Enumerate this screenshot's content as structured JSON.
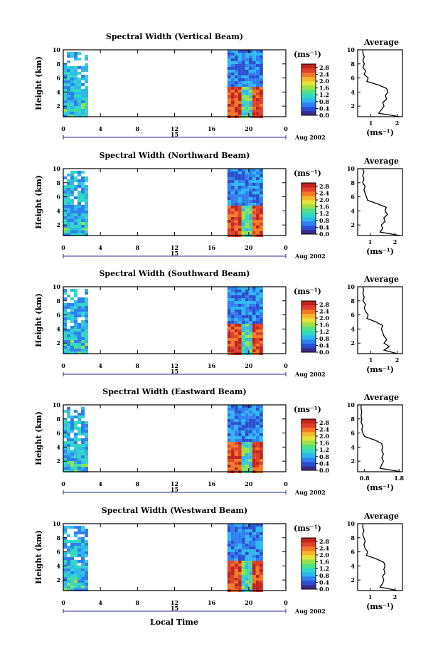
{
  "figure": {
    "x_axis_label": "Local Time",
    "date_label": "Aug 2002",
    "colorbar_unit": "(ms⁻¹)",
    "average_title": "Average",
    "average_unit": "(ms⁻¹)"
  },
  "colors": {
    "scale": [
      "#3a2a8a",
      "#2a4fd0",
      "#2f7ff0",
      "#2fb7f0",
      "#33d7c7",
      "#4fe08a",
      "#9ce04a",
      "#e6e23a",
      "#f6b62e",
      "#f07a26",
      "#e0402a",
      "#c0241c"
    ]
  },
  "chart_data": [
    {
      "type": "heatmap",
      "title": "Spectral Width (Vertical Beam)",
      "ylabel": "Height (km)",
      "xlabel": "",
      "x_ticks": [
        "0",
        "4",
        "8",
        "12",
        "16",
        "20",
        "0"
      ],
      "x_sub_label": "15",
      "xlim": [
        0,
        24
      ],
      "ylim": [
        0.5,
        10
      ],
      "y_ticks": [
        "2",
        "4",
        "6",
        "8",
        "10"
      ],
      "data_blocks": [
        {
          "x": [
            0,
            2.4
          ],
          "y": [
            0.5,
            9.7
          ]
        },
        {
          "x": [
            17.7,
            21.3
          ],
          "y": [
            0.5,
            10
          ]
        }
      ],
      "colorbar": {
        "ticks": [
          "0.0",
          "0.4",
          "0.8",
          "1.2",
          "1.6",
          "2.0",
          "2.4",
          "2.8"
        ],
        "range": [
          0,
          3
        ]
      },
      "average": {
        "title": "Average",
        "xlabel": "(ms⁻¹)",
        "x_ticks": [
          "1",
          "2"
        ],
        "xlim": [
          0.5,
          2.2
        ],
        "y_ticks": [
          "2",
          "4",
          "6",
          "8",
          "10"
        ],
        "height": [
          0.5,
          1,
          1.5,
          2,
          2.5,
          3,
          3.5,
          4,
          4.5,
          5,
          5.5,
          6,
          6.5,
          7,
          7.5,
          8,
          8.5,
          9,
          9.5,
          10
        ],
        "value": [
          2.1,
          1.3,
          1.4,
          1.5,
          1.45,
          1.6,
          1.55,
          1.65,
          1.6,
          1.3,
          0.85,
          0.9,
          0.75,
          0.8,
          0.7,
          0.75,
          0.7,
          0.75,
          0.7,
          0.7
        ]
      }
    },
    {
      "type": "heatmap",
      "title": "Spectral Width (Northward Beam)",
      "ylabel": "Height (km)",
      "xlabel": "",
      "x_ticks": [
        "0",
        "4",
        "8",
        "12",
        "16",
        "20",
        "0"
      ],
      "x_sub_label": "15",
      "xlim": [
        0,
        24
      ],
      "ylim": [
        0.5,
        10
      ],
      "y_ticks": [
        "2",
        "4",
        "6",
        "8",
        "10"
      ],
      "data_blocks": [
        {
          "x": [
            0,
            2.4
          ],
          "y": [
            0.5,
            9.7
          ]
        },
        {
          "x": [
            17.7,
            21.3
          ],
          "y": [
            0.5,
            10
          ]
        }
      ],
      "colorbar": {
        "ticks": [
          "0.0",
          "0.4",
          "0.8",
          "1.2",
          "1.6",
          "2.0",
          "2.4",
          "2.8"
        ],
        "range": [
          0,
          3
        ]
      },
      "average": {
        "title": "Average",
        "xlabel": "(ms⁻¹)",
        "x_ticks": [
          "1",
          "2"
        ],
        "xlim": [
          0.5,
          2.3
        ],
        "y_ticks": [
          "2",
          "4",
          "6",
          "8",
          "10"
        ],
        "height": [
          0.5,
          1,
          1.5,
          2,
          2.5,
          3,
          3.5,
          4,
          4.5,
          5,
          5.5,
          6,
          6.5,
          7,
          7.5,
          8,
          8.5,
          9,
          9.5,
          10
        ],
        "value": [
          2.2,
          1.4,
          1.5,
          1.45,
          1.6,
          1.55,
          1.7,
          1.6,
          1.65,
          1.3,
          0.9,
          0.85,
          0.8,
          0.75,
          0.8,
          0.7,
          0.75,
          0.7,
          0.75,
          0.7
        ]
      }
    },
    {
      "type": "heatmap",
      "title": "Spectral Width (Southward Beam)",
      "ylabel": "Height (km)",
      "xlabel": "",
      "x_ticks": [
        "0",
        "4",
        "8",
        "12",
        "16",
        "20",
        "0"
      ],
      "x_sub_label": "15",
      "xlim": [
        0,
        24
      ],
      "ylim": [
        0.5,
        10
      ],
      "y_ticks": [
        "2",
        "4",
        "6",
        "8",
        "10"
      ],
      "data_blocks": [
        {
          "x": [
            0,
            2.4
          ],
          "y": [
            0.5,
            9.7
          ]
        },
        {
          "x": [
            17.7,
            21.3
          ],
          "y": [
            0.5,
            10
          ]
        }
      ],
      "colorbar": {
        "ticks": [
          "0.0",
          "0.4",
          "0.8",
          "1.2",
          "1.6",
          "2.0",
          "2.4",
          "2.8"
        ],
        "range": [
          0,
          3
        ]
      },
      "average": {
        "title": "Average",
        "xlabel": "(ms⁻¹)",
        "x_ticks": [
          "1",
          "2"
        ],
        "xlim": [
          0.5,
          2.2
        ],
        "y_ticks": [
          "2",
          "4",
          "6",
          "8",
          "10"
        ],
        "height": [
          0.5,
          1,
          1.5,
          2,
          2.5,
          3,
          3.5,
          4,
          4.5,
          5,
          5.5,
          6,
          6.5,
          7,
          7.5,
          8,
          8.5,
          9,
          9.5,
          10
        ],
        "value": [
          2.0,
          1.5,
          1.7,
          1.5,
          1.6,
          1.5,
          1.45,
          1.4,
          1.45,
          1.2,
          0.85,
          0.9,
          0.8,
          0.75,
          0.8,
          0.7,
          0.75,
          0.7,
          0.72,
          0.7
        ]
      }
    },
    {
      "type": "heatmap",
      "title": "Spectral Width (Eastward Beam)",
      "ylabel": "Height (km)",
      "xlabel": "",
      "x_ticks": [
        "0",
        "4",
        "8",
        "12",
        "16",
        "20",
        "0"
      ],
      "x_sub_label": "15",
      "xlim": [
        0,
        24
      ],
      "ylim": [
        0.5,
        10
      ],
      "y_ticks": [
        "2",
        "4",
        "6",
        "8",
        "10"
      ],
      "data_blocks": [
        {
          "x": [
            0,
            2.4
          ],
          "y": [
            0.5,
            9.7
          ]
        },
        {
          "x": [
            17.7,
            21.3
          ],
          "y": [
            0.5,
            10
          ]
        }
      ],
      "colorbar": {
        "ticks": [
          "0.0",
          "0.4",
          "0.8",
          "1.2",
          "1.6",
          "2.0",
          "2.4",
          "2.8"
        ],
        "range": [
          0,
          3
        ]
      },
      "average": {
        "title": "Average",
        "xlabel": "(ms⁻¹)",
        "x_ticks": [
          "0.8",
          "1.8"
        ],
        "xlim": [
          0.6,
          1.9
        ],
        "y_ticks": [
          "2",
          "4",
          "6",
          "8",
          "10"
        ],
        "height": [
          0.5,
          1,
          1.5,
          2,
          2.5,
          3,
          3.5,
          4,
          4.5,
          5,
          5.5,
          6,
          6.5,
          7,
          7.5,
          8,
          8.5,
          9,
          9.5,
          10
        ],
        "value": [
          1.85,
          1.25,
          1.3,
          1.35,
          1.3,
          1.35,
          1.3,
          1.32,
          1.3,
          1.1,
          0.8,
          0.75,
          0.72,
          0.75,
          0.7,
          0.72,
          0.7,
          0.72,
          0.7,
          0.7
        ]
      }
    },
    {
      "type": "heatmap",
      "title": "Spectral Width (Westward Beam)",
      "ylabel": "Height (km)",
      "xlabel": "Local Time",
      "x_ticks": [
        "0",
        "4",
        "8",
        "12",
        "16",
        "20",
        "0"
      ],
      "x_sub_label": "15",
      "xlim": [
        0,
        24
      ],
      "ylim": [
        0.5,
        10
      ],
      "y_ticks": [
        "2",
        "4",
        "6",
        "8",
        "10"
      ],
      "data_blocks": [
        {
          "x": [
            0,
            2.4
          ],
          "y": [
            0.5,
            9.7
          ]
        },
        {
          "x": [
            17.7,
            21.3
          ],
          "y": [
            0.5,
            10
          ]
        }
      ],
      "colorbar": {
        "ticks": [
          "0.0",
          "0.4",
          "0.8",
          "1.2",
          "1.6",
          "2.0",
          "2.4",
          "2.8"
        ],
        "range": [
          0,
          3
        ]
      },
      "average": {
        "title": "Average",
        "xlabel": "(ms⁻¹)",
        "x_ticks": [
          "1",
          "2"
        ],
        "xlim": [
          0.5,
          2.3
        ],
        "y_ticks": [
          "2",
          "4",
          "6",
          "8",
          "10"
        ],
        "height": [
          0.5,
          1,
          1.5,
          2,
          2.5,
          3,
          3.5,
          4,
          4.5,
          5,
          5.5,
          6,
          6.5,
          7,
          7.5,
          8,
          8.5,
          9,
          9.5,
          10
        ],
        "value": [
          2.1,
          1.4,
          1.5,
          1.55,
          1.5,
          1.6,
          1.55,
          1.6,
          1.55,
          1.25,
          0.85,
          0.9,
          0.8,
          0.75,
          0.8,
          0.75,
          0.7,
          0.75,
          0.7,
          0.72
        ]
      }
    }
  ]
}
